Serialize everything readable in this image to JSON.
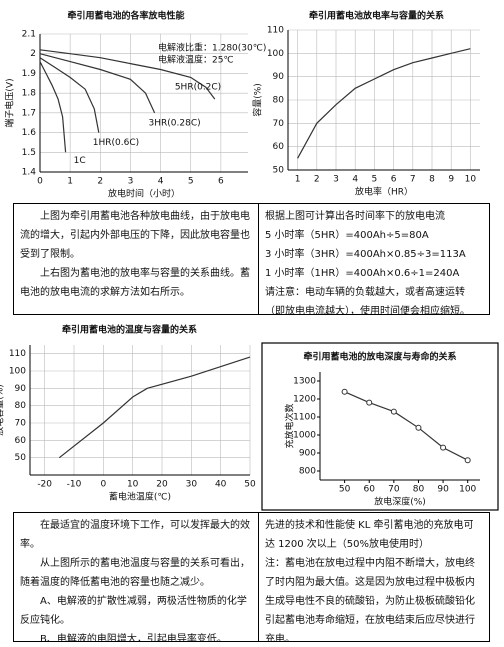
{
  "chart_data": [
    {
      "type": "line",
      "title": "牵引用蓄电池的各率放电性能",
      "x_label": "放电时间（小时）",
      "y_label": "端子电压(V)",
      "xlim": [
        0,
        6.9
      ],
      "xticks": [
        0,
        1,
        2,
        3,
        4,
        5,
        6
      ],
      "ylim": [
        1.4,
        2.1
      ],
      "yticks": [
        1.4,
        1.5,
        1.6,
        1.7,
        1.8,
        1.9,
        2,
        2.1
      ],
      "grid": true,
      "annotations": [
        "电解液比重：1.280(30℃)",
        "电解液温度：25℃"
      ],
      "series": [
        {
          "name": "1C",
          "color": "#333333",
          "x": [
            0,
            0.2,
            0.4,
            0.6,
            0.75,
            0.85
          ],
          "values": [
            1.96,
            1.9,
            1.84,
            1.77,
            1.68,
            1.5
          ]
        },
        {
          "name": "1HR(0.6C)",
          "color": "#333333",
          "x": [
            0,
            0.5,
            1,
            1.5,
            1.8,
            1.95
          ],
          "values": [
            1.98,
            1.93,
            1.88,
            1.82,
            1.72,
            1.6
          ]
        },
        {
          "name": "3HR(0.28C)",
          "color": "#333333",
          "x": [
            0,
            1,
            2,
            3,
            3.5,
            3.8
          ],
          "values": [
            2,
            1.96,
            1.92,
            1.87,
            1.8,
            1.7
          ]
        },
        {
          "name": "5HR(0.2C)",
          "color": "#333333",
          "x": [
            0,
            1,
            2,
            3,
            4,
            5,
            5.5,
            5.8
          ],
          "values": [
            2.02,
            2,
            1.98,
            1.95,
            1.92,
            1.88,
            1.83,
            1.77
          ]
        }
      ]
    },
    {
      "type": "line",
      "title": "牵引用蓄电池放电率与容量的关系",
      "x_label": "放电率（HR）",
      "y_label": "容量(%)",
      "xlim": [
        0.5,
        10.5
      ],
      "xticks": [
        1,
        2,
        3,
        4,
        5,
        6,
        7,
        8,
        9,
        10
      ],
      "ylim": [
        50,
        110
      ],
      "yticks": [
        50,
        60,
        70,
        80,
        90,
        100,
        110
      ],
      "grid": true,
      "series": [
        {
          "color": "#333333",
          "x": [
            1,
            2,
            3,
            4,
            5,
            6,
            7,
            8,
            9,
            10
          ],
          "values": [
            55,
            70,
            78,
            85,
            89,
            93,
            96,
            98,
            100,
            102
          ]
        }
      ]
    },
    {
      "type": "line",
      "title": "牵引用蓄电池的温度与容量的关系",
      "x_label": "蓄电池温度(℃)",
      "y_label": "放电容量(%)",
      "xlim": [
        -25,
        50
      ],
      "xticks": [
        -20,
        -10,
        0,
        10,
        20,
        30,
        40,
        50
      ],
      "ylim": [
        40,
        115
      ],
      "yticks": [
        50,
        60,
        70,
        80,
        90,
        100,
        110
      ],
      "grid": true,
      "series": [
        {
          "color": "#333333",
          "x": [
            -15,
            0,
            10,
            15,
            30,
            50
          ],
          "values": [
            50,
            70,
            85,
            90,
            97,
            108
          ]
        }
      ]
    },
    {
      "type": "line",
      "title": "牵引用蓄电池的放电深度与寿命的关系",
      "x_label": "放电深度(%)",
      "y_label": "充放电次数",
      "xlim": [
        40,
        105
      ],
      "xticks": [
        50,
        60,
        70,
        80,
        90,
        100
      ],
      "ylim": [
        750,
        1350
      ],
      "yticks": [
        800,
        900,
        1000,
        1100,
        1200,
        1300
      ],
      "grid": false,
      "markers": true,
      "series": [
        {
          "color": "#333333",
          "x": [
            50,
            60,
            70,
            80,
            90,
            100
          ],
          "values": [
            1240,
            1180,
            1130,
            1040,
            930,
            860
          ]
        }
      ]
    }
  ],
  "text_boxes": [
    {
      "paragraphs": [
        "上图为牵引用蓄电池各种放电曲线，由于放电电流的增大，引起内外部电压的下降，因此放电容量也受到了限制。",
        "上右图为蓄电池的放电率与容量的关系曲线。蓄电池的放电电流的求解方法如右所示。"
      ]
    },
    {
      "paragraphs": [
        "根据上图可计算出各时间率下的放电电流",
        "5 小时率（5HR）=400Ah÷5=80A",
        "3 小时率（3HR）=400Ah×0.85÷3=113A",
        "1 小时率（1HR）=400Ah×0.6÷1=240A",
        "请注意：电动车辆的负载越大，或者高速运转（即放电电流越大），使用时间便会相应缩短。"
      ]
    },
    {
      "paragraphs": [
        "在最适宜的温度环境下工作，可以发挥最大的效率。",
        "从上图所示的蓄电池温度与容量的关系可看出，随着温度的降低蓄电池的容量也随之减少。",
        "A、电解液的扩散性减弱，两极活性物质的化学反应钝化。",
        "B、电解液的电阻增大，引起电导率变低。"
      ]
    },
    {
      "paragraphs": [
        "先进的技术和性能使 KL 牵引蓄电池的充放电可达 1200 次以上（50%放电使用时）",
        "注：蓄电池在放电过程中内阻不断增大，放电终了时内阻为最大值。这是因为放电过程中极板内生成导电性不良的硫酸铅，为防止极板硫酸铅化引起蓄电池寿命缩短，在放电结束后应尽快进行充电。"
      ]
    }
  ]
}
